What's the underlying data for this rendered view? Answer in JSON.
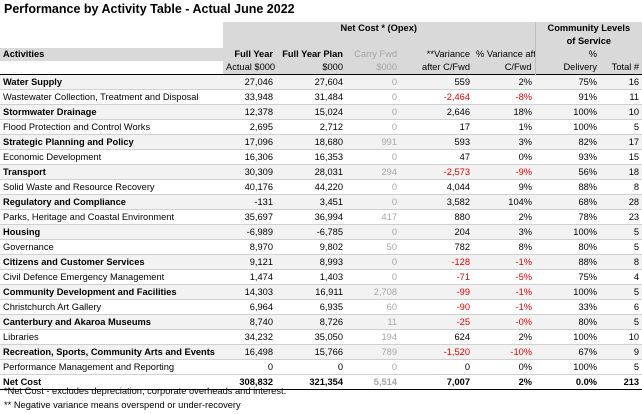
{
  "title": "Performance by Activity Table - Actual June 2022",
  "header": {
    "group_net_cost": "Net Cost * (Opex)",
    "group_community": "Community Levels of Service",
    "activities": "Activities",
    "full_year_l1": "Full Year",
    "full_year_l2": "Actual $000",
    "plan_l1": "Full Year Plan",
    "plan_l2": "$000",
    "carry_l1": "Carry Fwd",
    "carry_l2": "$000",
    "variance_l1": "**Variance",
    "variance_l2": "after C/Fwd",
    "pct_var_l1": "% Variance after",
    "pct_var_l2": "C/Fwd",
    "pct_l1": "%",
    "pct_l2": "Delivery",
    "total_l2": "Total #"
  },
  "rows": [
    {
      "activity": "Water Supply",
      "actual": "27,046",
      "plan": "27,604",
      "carry": "0",
      "variance": "559",
      "pct_var": "2%",
      "delivery": "75%",
      "total": "16",
      "bold": true,
      "neg": false
    },
    {
      "activity": "Wastewater Collection, Treatment and Disposal",
      "actual": "33,948",
      "plan": "31,484",
      "carry": "0",
      "variance": "-2,464",
      "pct_var": "-8%",
      "delivery": "91%",
      "total": "11",
      "bold": false,
      "neg": true
    },
    {
      "activity": "Stormwater Drainage",
      "actual": "12,378",
      "plan": "15,024",
      "carry": "0",
      "variance": "2,646",
      "pct_var": "18%",
      "delivery": "100%",
      "total": "10",
      "bold": true,
      "neg": false
    },
    {
      "activity": "Flood Protection and Control Works",
      "actual": "2,695",
      "plan": "2,712",
      "carry": "0",
      "variance": "17",
      "pct_var": "1%",
      "delivery": "100%",
      "total": "5",
      "bold": false,
      "neg": false
    },
    {
      "activity": "Strategic Planning and Policy",
      "actual": "17,096",
      "plan": "18,680",
      "carry": "991",
      "variance": "593",
      "pct_var": "3%",
      "delivery": "82%",
      "total": "17",
      "bold": true,
      "neg": false
    },
    {
      "activity": "Economic Development",
      "actual": "16,306",
      "plan": "16,353",
      "carry": "0",
      "variance": "47",
      "pct_var": "0%",
      "delivery": "93%",
      "total": "15",
      "bold": false,
      "neg": false
    },
    {
      "activity": "Transport",
      "actual": "30,309",
      "plan": "28,031",
      "carry": "294",
      "variance": "-2,573",
      "pct_var": "-9%",
      "delivery": "56%",
      "total": "18",
      "bold": true,
      "neg": true
    },
    {
      "activity": "Solid Waste and Resource Recovery",
      "actual": "40,176",
      "plan": "44,220",
      "carry": "0",
      "variance": "4,044",
      "pct_var": "9%",
      "delivery": "88%",
      "total": "8",
      "bold": false,
      "neg": false
    },
    {
      "activity": "Regulatory and Compliance",
      "actual": "-131",
      "plan": "3,451",
      "carry": "0",
      "variance": "3,582",
      "pct_var": "104%",
      "delivery": "68%",
      "total": "28",
      "bold": true,
      "neg": false
    },
    {
      "activity": "Parks, Heritage and Coastal Environment",
      "actual": "35,697",
      "plan": "36,994",
      "carry": "417",
      "variance": "880",
      "pct_var": "2%",
      "delivery": "78%",
      "total": "23",
      "bold": false,
      "neg": false
    },
    {
      "activity": "Housing",
      "actual": "-6,989",
      "plan": "-6,785",
      "carry": "0",
      "variance": "204",
      "pct_var": "3%",
      "delivery": "100%",
      "total": "5",
      "bold": true,
      "neg": false
    },
    {
      "activity": "Governance",
      "actual": "8,970",
      "plan": "9,802",
      "carry": "50",
      "variance": "782",
      "pct_var": "8%",
      "delivery": "80%",
      "total": "5",
      "bold": false,
      "neg": false
    },
    {
      "activity": "Citizens and Customer Services",
      "actual": "9,121",
      "plan": "8,993",
      "carry": "0",
      "variance": "-128",
      "pct_var": "-1%",
      "delivery": "88%",
      "total": "8",
      "bold": true,
      "neg": true
    },
    {
      "activity": "Civil Defence Emergency Management",
      "actual": "1,474",
      "plan": "1,403",
      "carry": "0",
      "variance": "-71",
      "pct_var": "-5%",
      "delivery": "75%",
      "total": "4",
      "bold": false,
      "neg": true
    },
    {
      "activity": "Community Development and Facilities",
      "actual": "14,303",
      "plan": "16,911",
      "carry": "2,708",
      "variance": "-99",
      "pct_var": "-1%",
      "delivery": "100%",
      "total": "5",
      "bold": true,
      "neg": true
    },
    {
      "activity": "Christchurch Art Gallery",
      "actual": "6,964",
      "plan": "6,935",
      "carry": "60",
      "variance": "-90",
      "pct_var": "-1%",
      "delivery": "33%",
      "total": "6",
      "bold": false,
      "neg": true
    },
    {
      "activity": "Canterbury and Akaroa Museums",
      "actual": "8,740",
      "plan": "8,726",
      "carry": "11",
      "variance": "-25",
      "pct_var": "-0%",
      "delivery": "80%",
      "total": "5",
      "bold": true,
      "neg": true
    },
    {
      "activity": "Libraries",
      "actual": "34,232",
      "plan": "35,050",
      "carry": "194",
      "variance": "624",
      "pct_var": "2%",
      "delivery": "100%",
      "total": "10",
      "bold": false,
      "neg": false
    },
    {
      "activity": "Recreation, Sports, Community Arts and Events",
      "actual": "16,498",
      "plan": "15,766",
      "carry": "789",
      "variance": "-1,520",
      "pct_var": "-10%",
      "delivery": "67%",
      "total": "9",
      "bold": true,
      "neg": true
    },
    {
      "activity": "Performance Management and Reporting",
      "actual": "0",
      "plan": "0",
      "carry": "0",
      "variance": "0",
      "pct_var": "0%",
      "delivery": "100%",
      "total": "5",
      "bold": false,
      "neg": false
    }
  ],
  "total_row": {
    "activity": "Net Cost",
    "actual": "308,832",
    "plan": "321,354",
    "carry": "5,514",
    "variance": "7,007",
    "pct_var": "2%",
    "delivery": "0.0%",
    "total": "213"
  },
  "notes": [
    "*Net Cost - excludes depreciation, corporate overheads and interest.",
    "** Negative variance means overspend or under-recovery"
  ],
  "colors": {
    "negative": "#e60000",
    "carry_grey": "#a6a6a6",
    "header_bg": "#d9d9d9"
  }
}
